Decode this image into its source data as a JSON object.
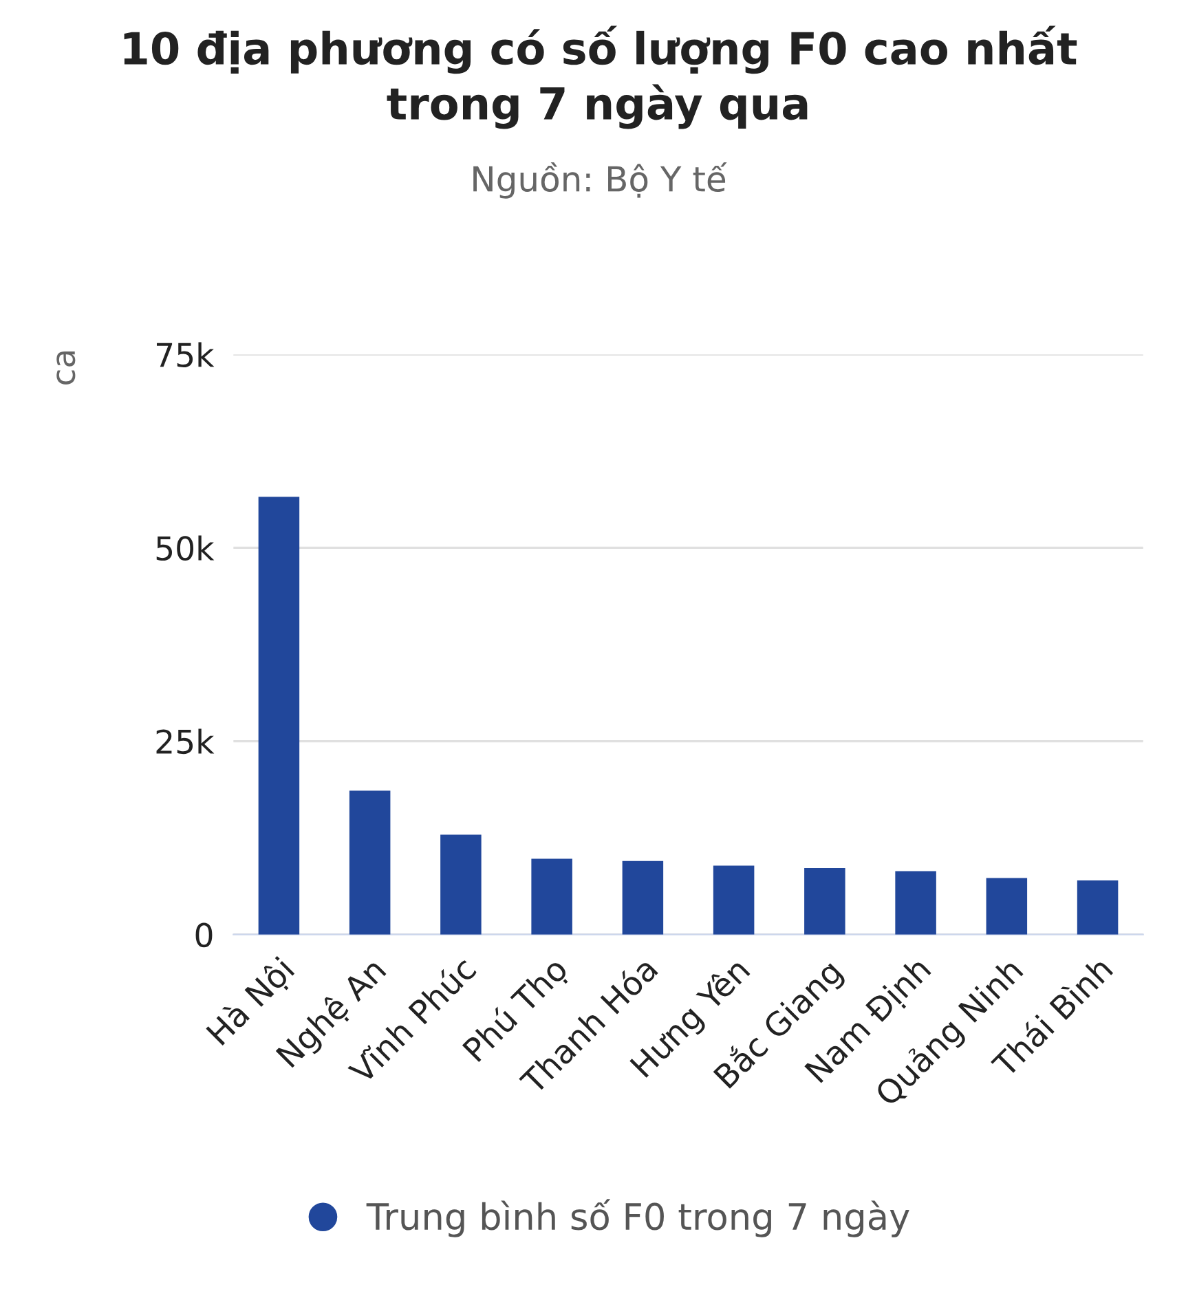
{
  "chart_data": {
    "type": "bar",
    "title": "10 địa phương có số lượng F0 cao nhất\ntrong 7 ngày qua",
    "subtitle": "Nguồn: Bộ Y tế",
    "ylabel": "ca",
    "categories": [
      "Hà Nội",
      "Nghệ An",
      "Vĩnh Phúc",
      "Phú Thọ",
      "Thanh Hóa",
      "Hưng Yên",
      "Bắc Giang",
      "Nam Định",
      "Quảng Ninh",
      "Thái Bình"
    ],
    "series": [
      {
        "name": "Trung bình số F0 trong 7 ngày",
        "color": "#21479b",
        "values": [
          56600,
          18600,
          12900,
          9800,
          9500,
          8900,
          8600,
          8200,
          7300,
          7000
        ]
      }
    ],
    "ylim": [
      0,
      75000
    ],
    "yticks": [
      {
        "value": 0,
        "label": "0"
      },
      {
        "value": 25000,
        "label": "25k"
      },
      {
        "value": 50000,
        "label": "50k"
      },
      {
        "value": 75000,
        "label": "75k"
      }
    ],
    "grid": "y",
    "legend": "bottom"
  }
}
